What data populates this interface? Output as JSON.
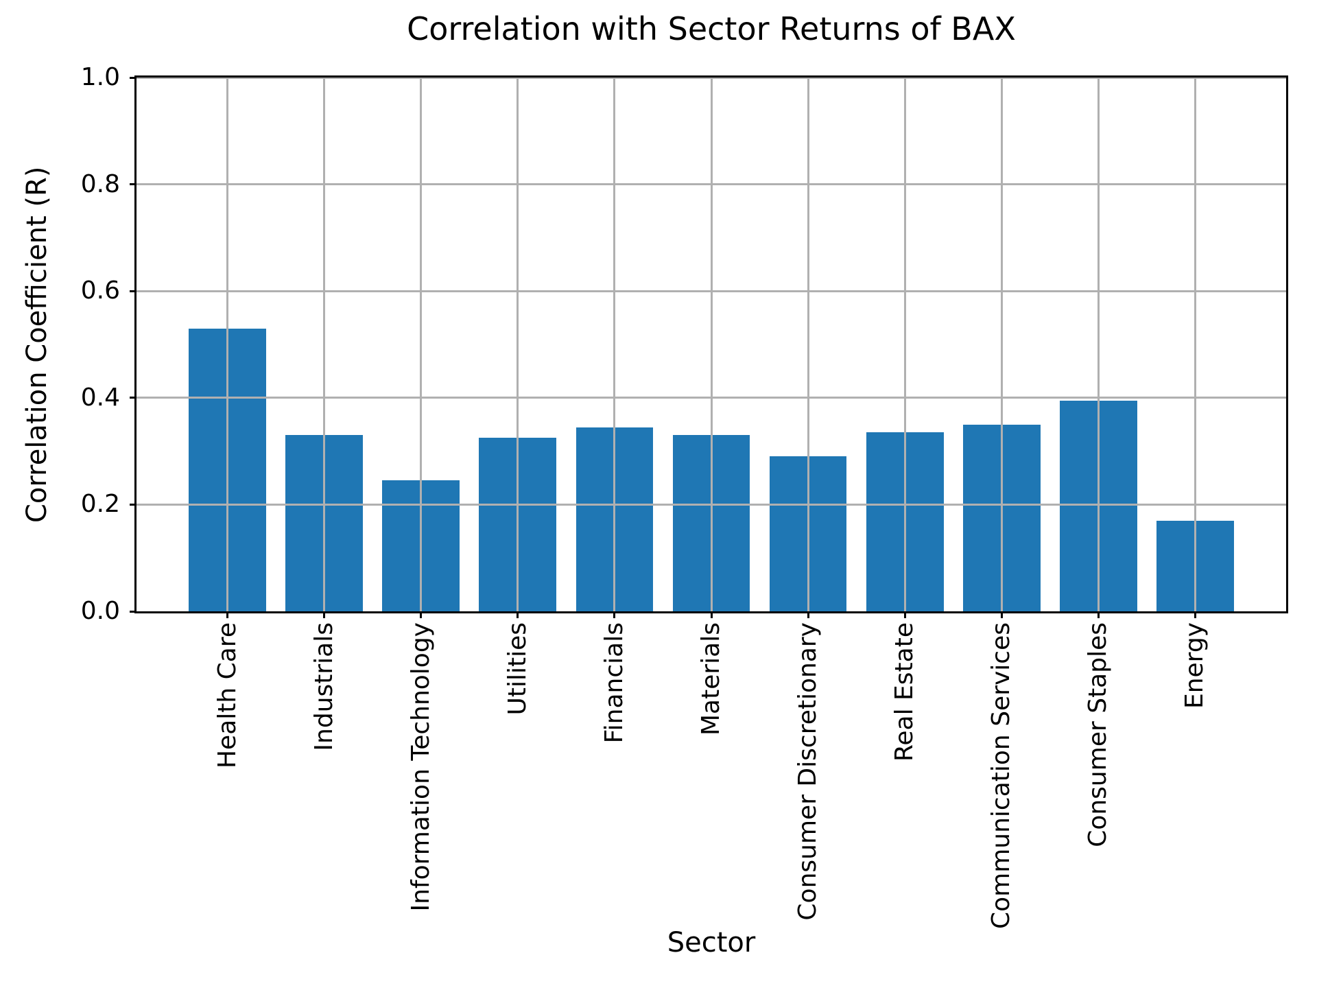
{
  "chart_data": {
    "type": "bar",
    "title": "Correlation with Sector Returns of BAX",
    "xlabel": "Sector",
    "ylabel": "Correlation Coefficient (R)",
    "categories": [
      "Health Care",
      "Industrials",
      "Information Technology",
      "Utilities",
      "Financials",
      "Materials",
      "Consumer Discretionary",
      "Real Estate",
      "Communication Services",
      "Consumer Staples",
      "Energy"
    ],
    "values": [
      0.53,
      0.33,
      0.245,
      0.325,
      0.345,
      0.33,
      0.29,
      0.335,
      0.35,
      0.395,
      0.17
    ],
    "ylim": [
      0.0,
      1.0
    ],
    "yticks": [
      0.0,
      0.2,
      0.4,
      0.6,
      0.8,
      1.0
    ],
    "ytick_labels": [
      "0.0",
      "0.2",
      "0.4",
      "0.6",
      "0.8",
      "1.0"
    ],
    "x_tick_rotation": 90,
    "grid": true,
    "legend": null,
    "bar_color": "#1f77b4",
    "grid_color": "#b0b0b0",
    "spine_color": "#000000",
    "background_color": "#ffffff"
  }
}
